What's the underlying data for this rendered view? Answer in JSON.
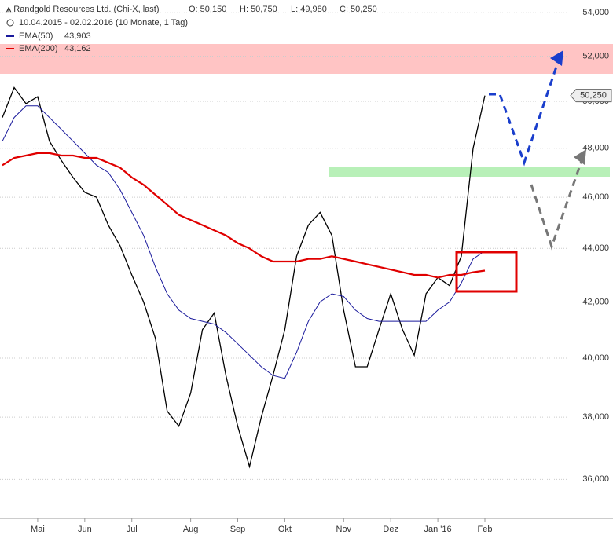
{
  "chart_data": {
    "type": "line",
    "title": "Randgold Resources Ltd. (Chi-X, last)",
    "ohlc": [
      "O: 50,150",
      "H: 50,750",
      "L: 49,980",
      "C: 50,250"
    ],
    "subtitle": "10.04.2015 - 02.02.2016 (10 Monate, 1 Tag)",
    "last_label": "50,250",
    "log_scale": true,
    "grid": true,
    "categories": [
      null,
      null,
      null,
      "Mai",
      null,
      null,
      null,
      "Jun",
      null,
      null,
      null,
      "Jul",
      null,
      null,
      null,
      null,
      "Aug",
      null,
      null,
      null,
      "Sep",
      null,
      null,
      null,
      "Okt",
      null,
      null,
      null,
      null,
      "Nov",
      null,
      null,
      null,
      "Dez",
      null,
      null,
      null,
      "Jan '16",
      null,
      null,
      null,
      "Feb"
    ],
    "series": [
      {
        "color": "#000000",
        "values": [
          49300,
          50600,
          49900,
          50200,
          48300,
          47500,
          46800,
          46200,
          46000,
          44900,
          44100,
          43000,
          42000,
          40700,
          38200,
          37700,
          38800,
          41000,
          41600,
          39400,
          37700,
          36400,
          38000,
          39400,
          41000,
          43700,
          44900,
          45400,
          44500,
          41700,
          39700,
          39700,
          41000,
          42300,
          41000,
          40100,
          42300,
          42900,
          42600,
          43700,
          48000,
          50250
        ]
      },
      {
        "name": "EMA(50)",
        "legend_value": "43,903",
        "color": "#1a1a9c",
        "values": [
          48300,
          49300,
          49800,
          49800,
          49300,
          48800,
          48300,
          47800,
          47300,
          47000,
          46300,
          45400,
          44500,
          43300,
          42300,
          41700,
          41400,
          41300,
          41200,
          40900,
          40500,
          40100,
          39700,
          39400,
          39300,
          40200,
          41300,
          42000,
          42300,
          42200,
          41700,
          41400,
          41300,
          41300,
          41300,
          41300,
          41300,
          41700,
          42000,
          42700,
          43600,
          43903
        ]
      },
      {
        "name": "EMA(200)",
        "legend_value": "43,162",
        "color": "#e00000",
        "values": [
          47300,
          47600,
          47700,
          47800,
          47800,
          47700,
          47700,
          47600,
          47600,
          47400,
          47200,
          46800,
          46500,
          46100,
          45700,
          45300,
          45100,
          44900,
          44700,
          44500,
          44200,
          44000,
          43700,
          43500,
          43500,
          43500,
          43600,
          43600,
          43700,
          43600,
          43500,
          43400,
          43300,
          43200,
          43100,
          43000,
          43000,
          42900,
          43000,
          43000,
          43100,
          43162
        ]
      }
    ],
    "ylim": [
      34800,
      54600
    ],
    "yticks": [
      {
        "value": 36000,
        "label": "36,000"
      },
      {
        "value": 38000,
        "label": "38,000"
      },
      {
        "value": 40000,
        "label": "40,000"
      },
      {
        "value": 42000,
        "label": "42,000"
      },
      {
        "value": 44000,
        "label": "44,000"
      },
      {
        "value": 46000,
        "label": "46,000"
      },
      {
        "value": 48000,
        "label": "48,000"
      },
      {
        "value": 50000,
        "label": "50,000"
      },
      {
        "value": 52000,
        "label": "52,000"
      },
      {
        "value": 54000,
        "label": "54,000"
      }
    ]
  }
}
